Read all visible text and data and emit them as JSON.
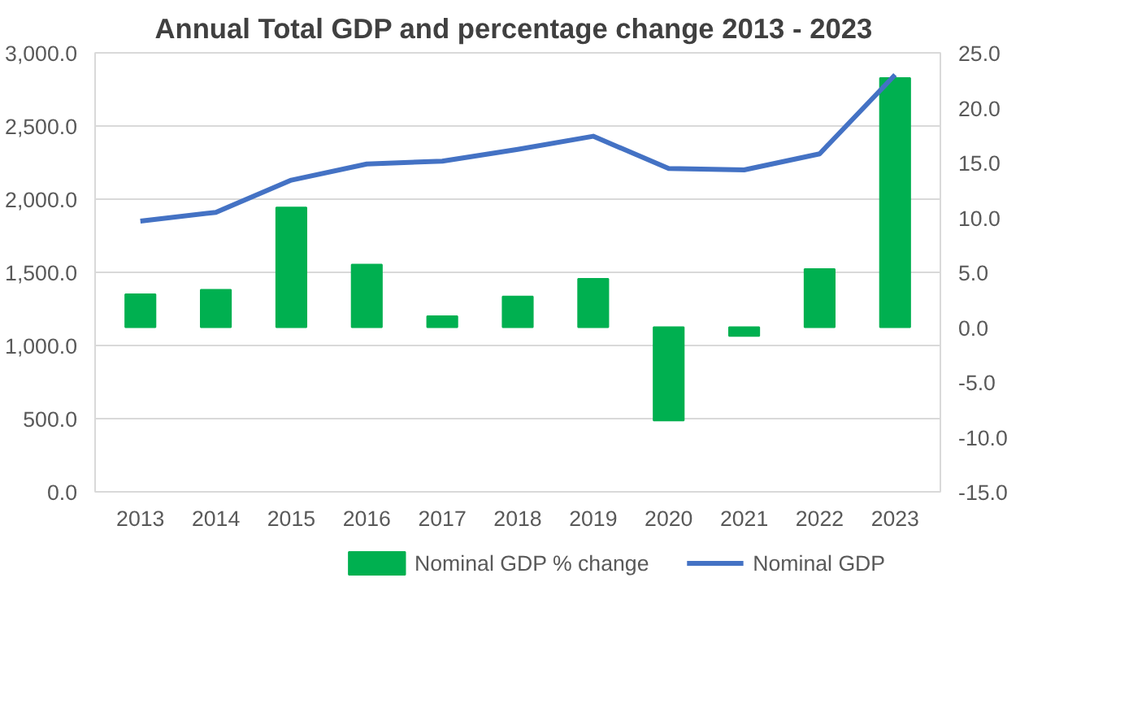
{
  "chart_data": {
    "type": "bar",
    "title": "Annual Total GDP and percentage change  2013 - 2023",
    "categories": [
      "2013",
      "2014",
      "2015",
      "2016",
      "2017",
      "2018",
      "2019",
      "2020",
      "2021",
      "2022",
      "2023"
    ],
    "series": [
      {
        "name": "Nominal GDP % change",
        "axis": "y2",
        "color": "#00b050",
        "values": [
          3.0,
          3.4,
          10.9,
          5.7,
          1.0,
          2.8,
          4.4,
          -8.5,
          -0.8,
          5.3,
          22.7
        ]
      },
      {
        "name": "Nominal GDP",
        "type": "line",
        "color": "#4472c4",
        "values": [
          1850,
          1910,
          2130,
          2240,
          2260,
          2340,
          2430,
          2210,
          2200,
          2310,
          2850
        ]
      }
    ],
    "ylim": [
      0,
      3000
    ],
    "yticks": [
      {
        "value": 0,
        "label": "0.0"
      },
      {
        "value": 500,
        "label": "500.0"
      },
      {
        "value": 1000,
        "label": "1,000.0"
      },
      {
        "value": 1500,
        "label": "1,500.0"
      },
      {
        "value": 2000,
        "label": "2,000.0"
      },
      {
        "value": 2500,
        "label": "2,500.0"
      },
      {
        "value": 3000,
        "label": "3,000.0"
      }
    ],
    "y2lim": [
      -15,
      25
    ],
    "y2ticks": [
      {
        "value": -15,
        "label": "-15.0"
      },
      {
        "value": -10,
        "label": "-10.0"
      },
      {
        "value": -5,
        "label": "-5.0"
      },
      {
        "value": 0,
        "label": "0.0"
      },
      {
        "value": 5,
        "label": "5.0"
      },
      {
        "value": 10,
        "label": "10.0"
      },
      {
        "value": 15,
        "label": "15.0"
      },
      {
        "value": 20,
        "label": "20.0"
      },
      {
        "value": 25,
        "label": "25.0"
      }
    ],
    "grid": "y",
    "legend": "bottom"
  }
}
